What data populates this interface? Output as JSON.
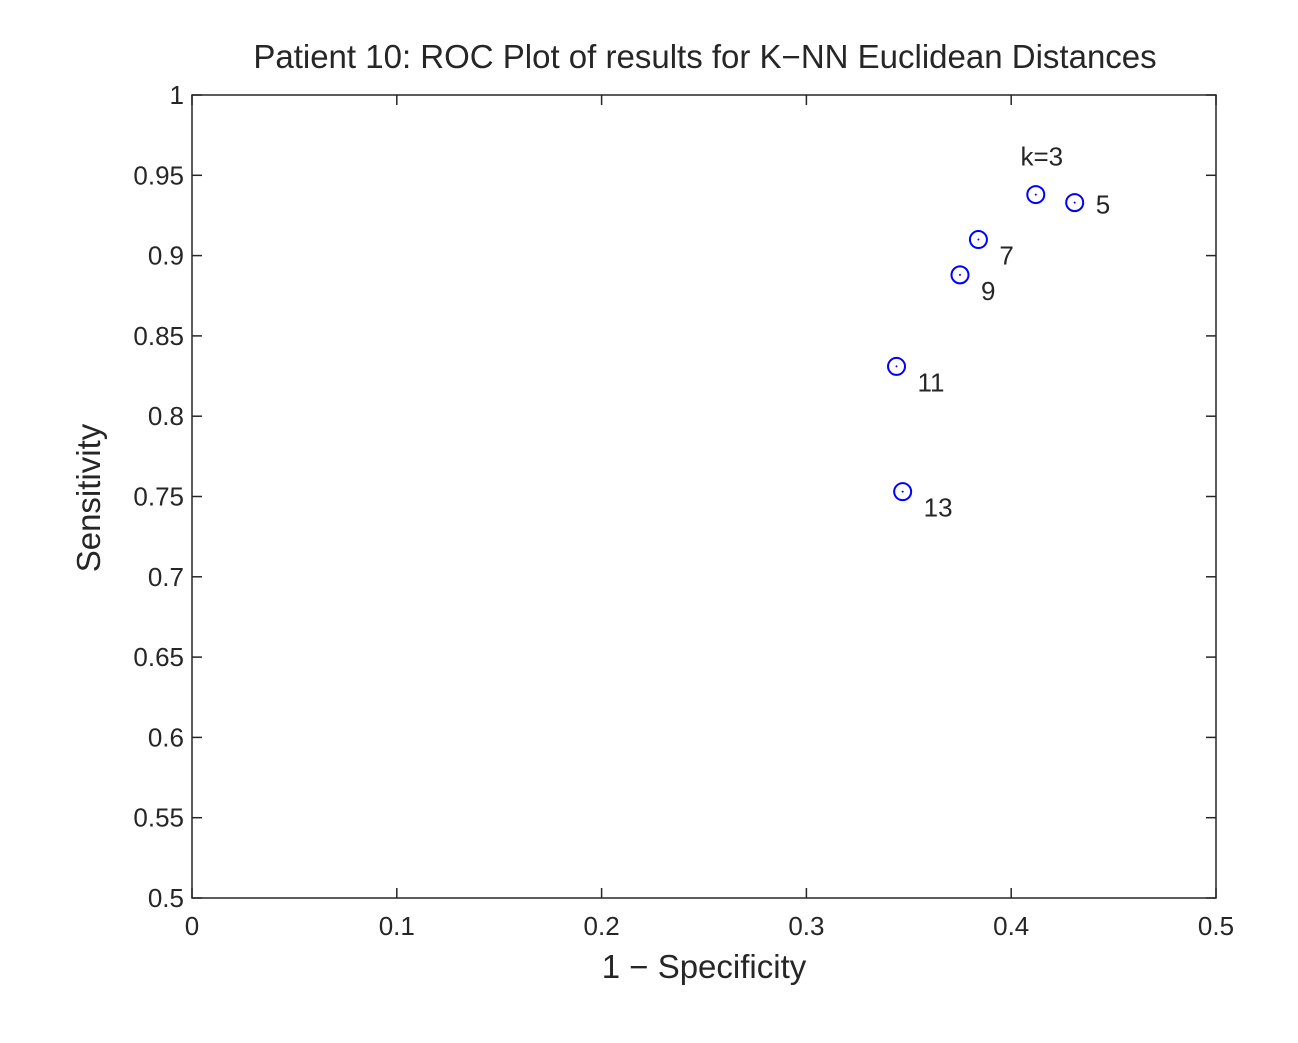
{
  "chart_data": {
    "type": "scatter",
    "title": "Patient 10: ROC Plot of results for K−NN Euclidean Distances",
    "xlabel": "1 − Specificity",
    "ylabel": "Sensitivity",
    "xlim": [
      0,
      0.5
    ],
    "ylim": [
      0.5,
      1
    ],
    "xticks": [
      "0",
      "0.1",
      "0.2",
      "0.3",
      "0.4",
      "0.5"
    ],
    "xtick_values": [
      0,
      0.1,
      0.2,
      0.3,
      0.4,
      0.5
    ],
    "yticks": [
      "0.5",
      "0.55",
      "0.6",
      "0.65",
      "0.7",
      "0.75",
      "0.8",
      "0.85",
      "0.9",
      "0.95",
      "1"
    ],
    "ytick_values": [
      0.5,
      0.55,
      0.6,
      0.65,
      0.7,
      0.75,
      0.8,
      0.85,
      0.9,
      0.95,
      1.0
    ],
    "grid": false,
    "marker": "circle",
    "marker_color": "#0000ff",
    "axis_color": "#262626",
    "points": [
      {
        "x": 0.412,
        "y": 0.938,
        "label": "k=3",
        "label_pos": "above"
      },
      {
        "x": 0.431,
        "y": 0.933,
        "label": "5",
        "label_pos": "right"
      },
      {
        "x": 0.384,
        "y": 0.91,
        "label": "7",
        "label_pos": "lower-right"
      },
      {
        "x": 0.375,
        "y": 0.888,
        "label": "9",
        "label_pos": "lower-right"
      },
      {
        "x": 0.344,
        "y": 0.831,
        "label": "11",
        "label_pos": "lower-right"
      },
      {
        "x": 0.347,
        "y": 0.753,
        "label": "13",
        "label_pos": "lower-right"
      }
    ]
  }
}
